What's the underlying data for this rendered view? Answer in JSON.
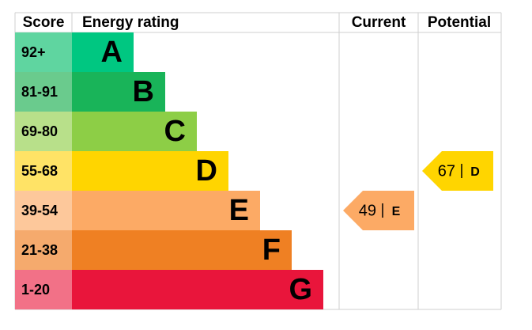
{
  "header": {
    "score": "Score",
    "rating": "Energy rating",
    "current": "Current",
    "potential": "Potential"
  },
  "bands": [
    {
      "score": "92+",
      "rating": "A",
      "color": "#00c781",
      "score_color": "#5fd5a0"
    },
    {
      "score": "81-91",
      "rating": "B",
      "color": "#19b459",
      "score_color": "#6acb8d"
    },
    {
      "score": "69-80",
      "rating": "C",
      "color": "#8dce46",
      "score_color": "#b8e08a"
    },
    {
      "score": "55-68",
      "rating": "D",
      "color": "#ffd500",
      "score_color": "#ffe366"
    },
    {
      "score": "39-54",
      "rating": "E",
      "color": "#fcaa65",
      "score_color": "#fdc89b"
    },
    {
      "score": "21-38",
      "rating": "F",
      "color": "#ef8023",
      "score_color": "#f5aa6d"
    },
    {
      "score": "1-20",
      "rating": "G",
      "color": "#e9153b",
      "score_color": "#f27187"
    }
  ],
  "current": {
    "score": 49,
    "rating": "E"
  },
  "potential": {
    "score": 67,
    "rating": "D"
  }
}
